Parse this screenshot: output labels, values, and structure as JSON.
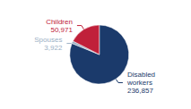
{
  "chart_data": {
    "type": "pie",
    "categories": [
      "Disabled\nworkers",
      "Spouses",
      "Children"
    ],
    "values": [
      236857,
      3922,
      50971
    ],
    "value_labels": [
      "236,857",
      "3,922",
      "50,971"
    ],
    "colors": [
      "#1b3a6b",
      "#9aafc4",
      "#c0203a"
    ],
    "data_labels": true
  }
}
